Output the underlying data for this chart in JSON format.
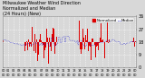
{
  "title": "Milwaukee Weather Wind Direction\nNormalized and Median\n(24 Hours) (New)",
  "title_fontsize": 3.5,
  "background_color": "#d8d8d8",
  "plot_bg_color": "#d8d8d8",
  "ylim": [
    0,
    360
  ],
  "ytick_vals": [
    0,
    90,
    180,
    270,
    360
  ],
  "ytick_labels": [
    "0",
    "9",
    "18",
    "27",
    "36"
  ],
  "ylabel_fontsize": 3.5,
  "xlabel_fontsize": 2.5,
  "bar_color": "#dd0000",
  "line_color": "#0000cc",
  "legend_bar_label": "Normalized",
  "legend_line_label": "Median",
  "legend_fontsize": 2.8,
  "grid_color": "#ffffff",
  "grid_linestyle": ":",
  "grid_alpha": 1.0,
  "num_points": 144,
  "seed": 42
}
